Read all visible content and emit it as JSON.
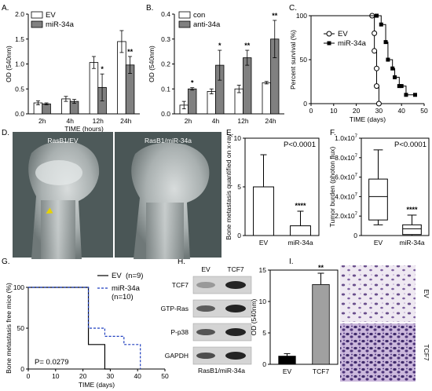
{
  "panels": {
    "A": "A.",
    "B": "B.",
    "C": "C.",
    "D": "D.",
    "E": "E.",
    "F": "F.",
    "G": "G.",
    "H": "H.",
    "I": "I."
  },
  "chart_data": [
    {
      "id": "A",
      "type": "bar",
      "categories": [
        "2h",
        "4h",
        "12h",
        "24h"
      ],
      "xlabel": "TIME (hours)",
      "ylabel": "OD (540nm)",
      "ylim": [
        0,
        2.0
      ],
      "yticks": [
        "0.0",
        "0.5",
        "1.0",
        "1.5",
        "2.0"
      ],
      "series": [
        {
          "name": "EV",
          "color": "#ffffff",
          "values": [
            0.22,
            0.3,
            1.03,
            1.45
          ],
          "errors": [
            0.04,
            0.05,
            0.12,
            0.22
          ]
        },
        {
          "name": "miR-34a",
          "color": "#808080",
          "values": [
            0.2,
            0.25,
            0.53,
            0.98
          ],
          "errors": [
            0.02,
            0.04,
            0.27,
            0.17
          ]
        }
      ],
      "stars": [
        "",
        "",
        "*",
        "**"
      ]
    },
    {
      "id": "B",
      "type": "bar",
      "categories": [
        "2h",
        "4h",
        "12h",
        "24h"
      ],
      "xlabel": "",
      "ylabel": "OD (540nm)",
      "ylim": [
        0,
        0.4
      ],
      "yticks": [
        "0.0",
        "0.1",
        "0.2",
        "0.3",
        "0.4"
      ],
      "series": [
        {
          "name": "con",
          "color": "#ffffff",
          "values": [
            0.035,
            0.09,
            0.1,
            0.125
          ],
          "errors": [
            0.015,
            0.01,
            0.015,
            0.005
          ]
        },
        {
          "name": "anti-34a",
          "color": "#808080",
          "values": [
            0.1,
            0.195,
            0.225,
            0.3
          ],
          "errors": [
            0.005,
            0.06,
            0.03,
            0.075
          ]
        }
      ],
      "stars": [
        "*",
        "*",
        "**",
        "**"
      ]
    },
    {
      "id": "C",
      "type": "line",
      "xlabel": "TIME (days)",
      "ylabel": "Percent survival (%)",
      "xlim": [
        0,
        50
      ],
      "ylim": [
        0,
        100
      ],
      "xticks": [
        "0",
        "10",
        "20",
        "30",
        "40",
        "50"
      ],
      "yticks": [
        "0",
        "50",
        "100"
      ],
      "series": [
        {
          "name": "EV",
          "marker": "open-circle",
          "x": [
            0,
            27,
            28,
            28,
            29,
            29,
            30
          ],
          "y": [
            100,
            100,
            80,
            60,
            40,
            20,
            0
          ]
        },
        {
          "name": "miR-34a",
          "marker": "filled-square",
          "x": [
            0,
            29,
            31,
            33,
            34,
            36,
            37,
            39,
            40,
            42,
            46
          ],
          "y": [
            100,
            100,
            90,
            70,
            50,
            40,
            30,
            20,
            20,
            10,
            10
          ]
        }
      ]
    },
    {
      "id": "E",
      "type": "box",
      "categories": [
        "EV",
        "miR-34a"
      ],
      "ylabel": "Bone metastasis quantified on x-ray",
      "ylim": [
        0,
        10
      ],
      "yticks": [
        "0",
        "5",
        "10"
      ],
      "annotation": "P<0.0001",
      "bars": [
        {
          "value": 5.0,
          "error_high": 8.3
        },
        {
          "value": 1.0,
          "error_high": 2.5
        }
      ],
      "stars": [
        "",
        "****"
      ]
    },
    {
      "id": "F",
      "type": "box",
      "categories": [
        "EV",
        "miR-34a"
      ],
      "ylabel": "Tumor burden (photon flux)",
      "ylim": [
        0,
        10
      ],
      "yticks": [
        "0",
        "2.0x10",
        "4.0x10",
        "6.0x10",
        "8.0x10",
        "1.0x10"
      ],
      "ytick_exponent": "7",
      "annotation": "P<0.0001",
      "boxes": [
        {
          "min": 1.1,
          "q1": 1.6,
          "median": 4.0,
          "q3": 5.8,
          "max": 8.8
        },
        {
          "min": 0.0,
          "q1": 0.1,
          "median": 0.7,
          "q3": 1.1,
          "max": 2.1
        }
      ],
      "stars": [
        "",
        "****"
      ]
    },
    {
      "id": "G",
      "type": "line",
      "xlabel": "TIME (days)",
      "ylabel": "Bone metastasis free mice (%)",
      "xlim": [
        0,
        50
      ],
      "ylim": [
        0,
        100
      ],
      "xticks": [
        "0",
        "10",
        "20",
        "30",
        "40",
        "50"
      ],
      "yticks": [
        "0",
        "50",
        "100"
      ],
      "annotation": "P= 0.0279",
      "series": [
        {
          "name": "EV",
          "count": "(n=9)",
          "style": "solid",
          "x": [
            0,
            22,
            22,
            28,
            28,
            30
          ],
          "y": [
            100,
            100,
            30,
            30,
            0,
            0
          ]
        },
        {
          "name": "miR-34a",
          "count": "(n=10)",
          "style": "dashed",
          "x": [
            0,
            22,
            22,
            28,
            28,
            35,
            35,
            41,
            41
          ],
          "y": [
            100,
            100,
            50,
            50,
            40,
            40,
            30,
            30,
            0
          ]
        }
      ]
    },
    {
      "id": "I",
      "type": "bar",
      "categories": [
        "EV",
        "TCF7"
      ],
      "ylabel": "OD (540nm)",
      "ylim": [
        0,
        15
      ],
      "yticks": [
        "0",
        "5",
        "10",
        "15"
      ],
      "series": [
        {
          "name": "",
          "colors": [
            "#000000",
            "#a0a0a0"
          ],
          "values": [
            1.3,
            12.7
          ],
          "errors": [
            0.4,
            1.8
          ]
        }
      ],
      "stars": [
        "",
        "**"
      ]
    }
  ],
  "panel_D": {
    "left": "RasB1/EV",
    "right": "RasB1/miR-34a"
  },
  "panel_H": {
    "columns": [
      "EV",
      "TCF7"
    ],
    "rows": [
      "TCF7",
      "GTP-Ras",
      "P-p38",
      "GAPDH"
    ],
    "caption": "RasB1/miR-34a"
  },
  "panel_I_images": {
    "top": "EV",
    "bottom": "TCF7"
  }
}
